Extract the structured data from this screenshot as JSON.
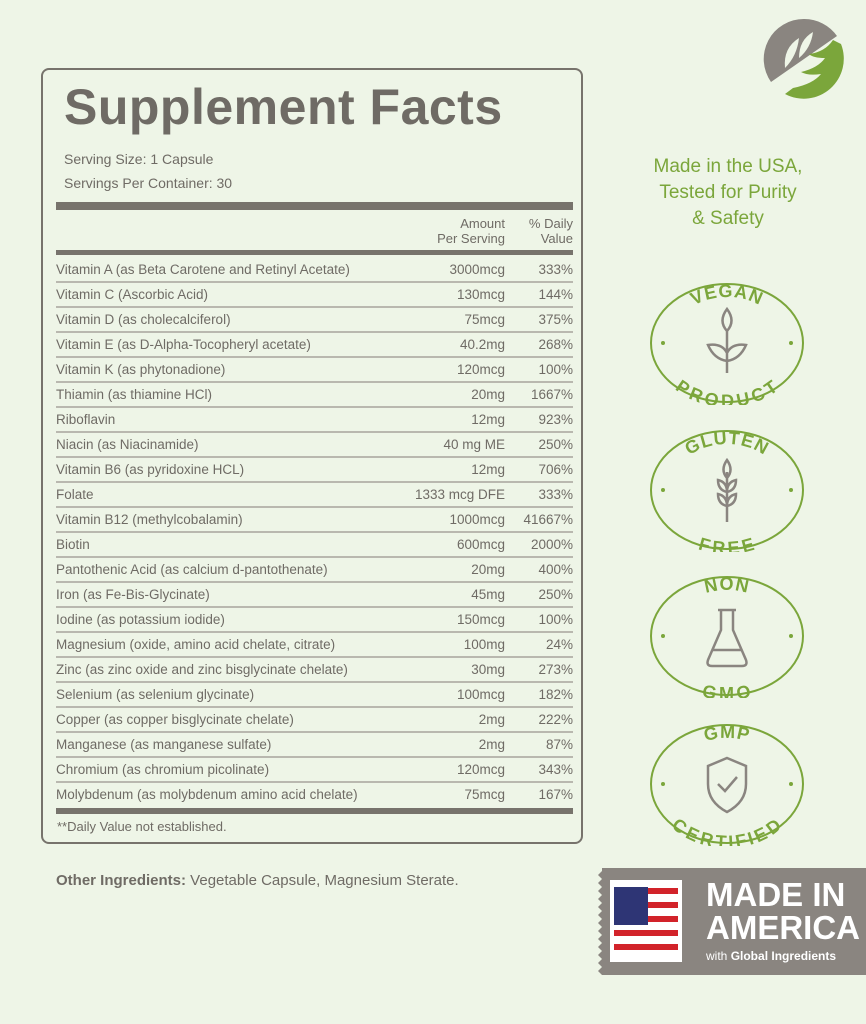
{
  "title": "Supplement Facts",
  "serving_size": "Serving Size: 1 Capsule",
  "servings_per_container": "Servings Per Container: 30",
  "columns": {
    "amount": [
      "Amount",
      "Per Serving"
    ],
    "daily": [
      "% Daily",
      "Value"
    ]
  },
  "rows": [
    [
      "Vitamin A (as Beta Carotene and Retinyl Acetate)",
      "3000mcg",
      "333%"
    ],
    [
      "Vitamin C (Ascorbic Acid)",
      "130mcg",
      "144%"
    ],
    [
      "Vitamin D (as cholecalciferol)",
      "75mcg",
      "375%"
    ],
    [
      "Vitamin E (as D-Alpha-Tocopheryl acetate)",
      "40.2mg",
      "268%"
    ],
    [
      "Vitamin K (as phytonadione)",
      "120mcg",
      "100%"
    ],
    [
      "Thiamin (as thiamine HCl)",
      "20mg",
      "1667%"
    ],
    [
      "Riboflavin",
      "12mg",
      "923%"
    ],
    [
      "Niacin (as Niacinamide)",
      "40 mg ME",
      "250%"
    ],
    [
      "Vitamin B6 (as pyridoxine HCL)",
      "12mg",
      "706%"
    ],
    [
      "Folate",
      "1333 mcg DFE",
      "333%"
    ],
    [
      "Vitamin B12 (methylcobalamin)",
      "1000mcg",
      "41667%"
    ],
    [
      "Biotin",
      "600mcg",
      "2000%"
    ],
    [
      "Pantothenic Acid (as calcium d-pantothenate)",
      "20mg",
      "400%"
    ],
    [
      "Iron (as Fe-Bis-Glycinate)",
      "45mg",
      "250%"
    ],
    [
      "Iodine (as potassium iodide)",
      "150mcg",
      "100%"
    ],
    [
      "Magnesium (oxide, amino acid chelate, citrate)",
      "100mg",
      "24%"
    ],
    [
      "Zinc (as zinc oxide and zinc bisglycinate chelate)",
      "30mg",
      "273%"
    ],
    [
      "Selenium (as selenium glycinate)",
      "100mcg",
      "182%"
    ],
    [
      "Copper (as copper bisglycinate chelate)",
      "2mg",
      "222%"
    ],
    [
      "Manganese (as manganese sulfate)",
      "2mg",
      "87%"
    ],
    [
      "Chromium (as chromium picolinate)",
      "120mcg",
      "343%"
    ],
    [
      "Molybdenum (as molybdenum amino acid chelate)",
      "75mcg",
      "167%"
    ]
  ],
  "note": "**Daily Value not established.",
  "other_label": "Other Ingredients:",
  "other_value": " Vegetable Capsule, Magnesium Sterate.",
  "tagline": [
    "Made in the USA,",
    "Tested for Purity",
    "& Safety"
  ],
  "badges": [
    {
      "top": "VEGAN",
      "bottom": "PRODUCT",
      "icon": "plant-icon"
    },
    {
      "top": "GLUTEN",
      "bottom": "FREE",
      "icon": "wheat-icon"
    },
    {
      "top": "NON",
      "bottom": "GMO",
      "icon": "flask-icon"
    },
    {
      "top": "GMP",
      "bottom": "CERTIFIED",
      "icon": "shield-check-icon"
    }
  ],
  "made_in_america": {
    "title": "MADE IN AMERICA",
    "line1": "MADE IN",
    "line2": "AMERICA",
    "sub_prefix": "with ",
    "sub_bold": "Global Ingredients"
  },
  "colors": {
    "green": "#7ba63b",
    "gray": "#77736c",
    "background": "#eef5e7"
  }
}
